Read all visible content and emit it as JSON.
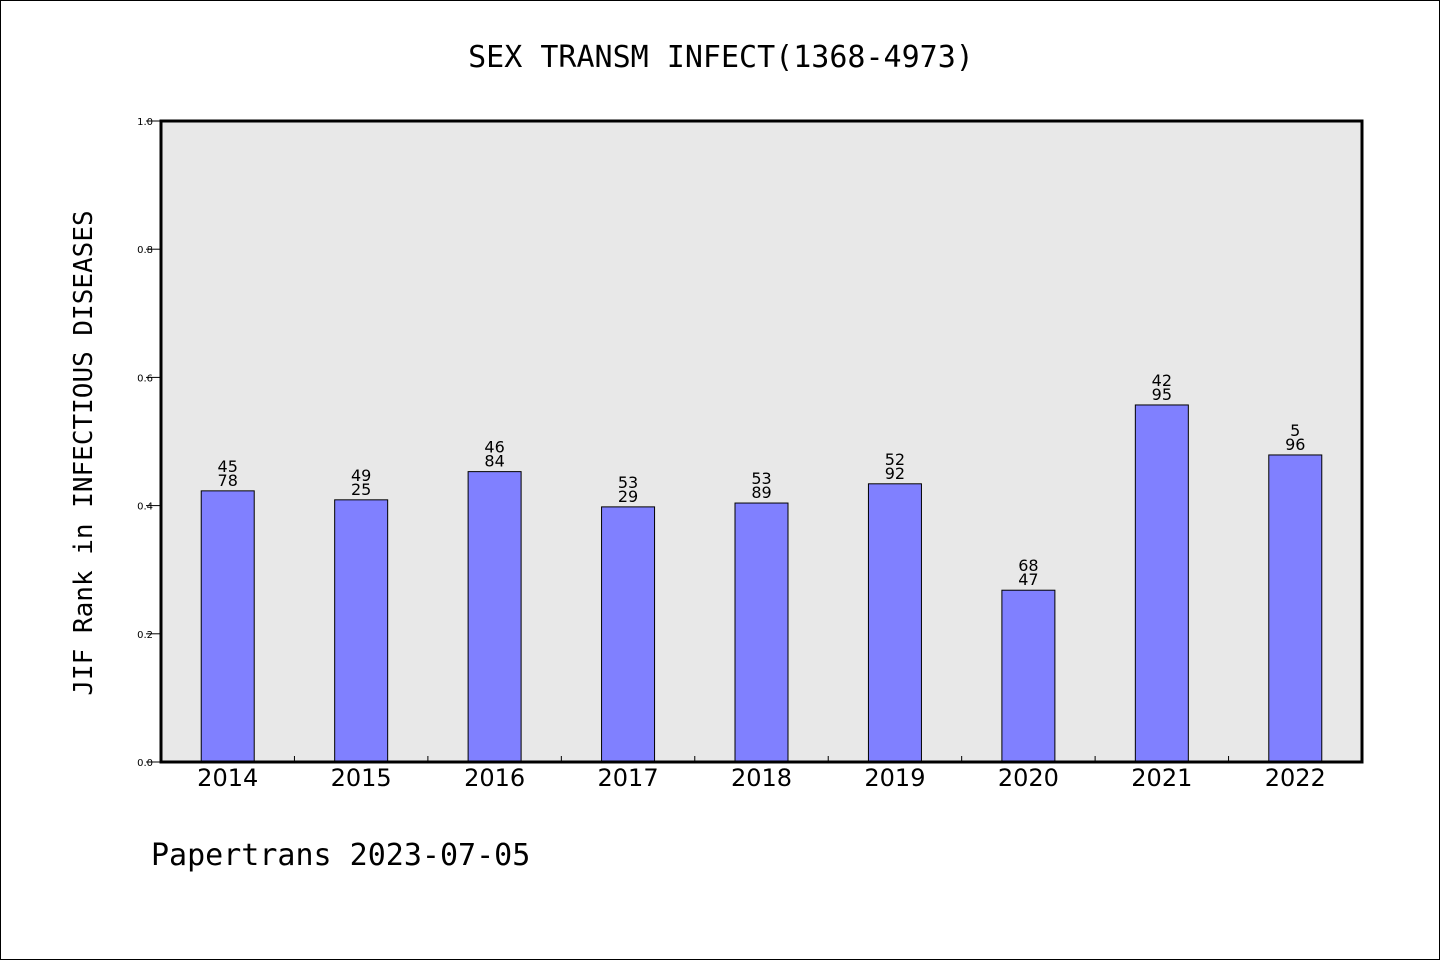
{
  "chart_data": {
    "type": "bar",
    "title": "SEX TRANSM INFECT(1368-4973)",
    "xlabel": "",
    "ylabel": "JIF Rank in INFECTIOUS DISEASES",
    "ylim": [
      0,
      1.0
    ],
    "yticks": [
      "0.0",
      "0.2",
      "0.4",
      "0.6",
      "0.8",
      "1.0"
    ],
    "categories": [
      "2014",
      "2015",
      "2016",
      "2017",
      "2018",
      "2019",
      "2020",
      "2021",
      "2022"
    ],
    "values": [
      0.423,
      0.409,
      0.453,
      0.398,
      0.404,
      0.434,
      0.268,
      0.557,
      0.479
    ],
    "bar_labels": [
      [
        "45",
        "78"
      ],
      [
        "49",
        "25"
      ],
      [
        "46",
        "84"
      ],
      [
        "53",
        "29"
      ],
      [
        "53",
        "89"
      ],
      [
        "52",
        "92"
      ],
      [
        "68",
        "47"
      ],
      [
        "42",
        "95"
      ],
      [
        "5",
        "96"
      ]
    ],
    "bar_color": "#8080ff",
    "plot_background": "#e8e8e8",
    "grid": false,
    "legend": "none"
  },
  "footer": "Papertrans 2023-07-05"
}
